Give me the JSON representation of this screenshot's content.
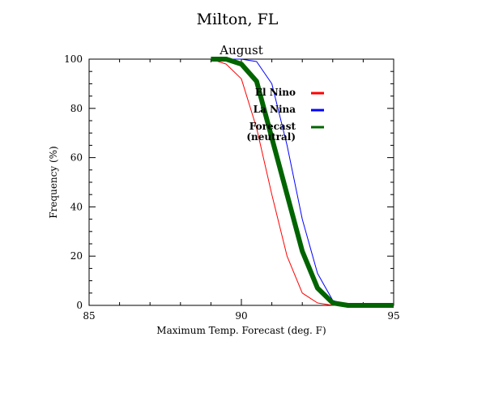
{
  "chart_data": {
    "type": "line",
    "title": "Milton, FL",
    "subtitle": "August",
    "xlabel": "Maximum Temp. Forecast (deg. F)",
    "ylabel": "Frequency (%)",
    "xlim": [
      85,
      95
    ],
    "ylim": [
      0,
      100
    ],
    "xticks": [
      "85",
      "90",
      "95"
    ],
    "yticks": [
      "0",
      "20",
      "40",
      "60",
      "80",
      "100"
    ],
    "grid": false,
    "legend_position": "upper-right inside plot",
    "series": [
      {
        "name": "El Nino",
        "color": "#ff0000",
        "x": [
          89.0,
          89.5,
          90.0,
          90.5,
          91.0,
          91.5,
          92.0,
          92.5,
          93.0,
          93.5,
          94.0,
          94.5,
          95.0
        ],
        "y": [
          100,
          98,
          92,
          72,
          45,
          20,
          5,
          1,
          0,
          0,
          0,
          0,
          0
        ]
      },
      {
        "name": "La Nina",
        "color": "#0000ff",
        "x": [
          89.5,
          90.0,
          90.5,
          91.0,
          91.5,
          92.0,
          92.5,
          93.0,
          93.5,
          94.0,
          94.5,
          95.0
        ],
        "y": [
          100,
          100,
          99,
          90,
          65,
          35,
          13,
          2,
          0,
          0,
          0,
          0
        ]
      },
      {
        "name": "Forecast (neutral)",
        "label_lines": [
          "Forecast",
          "(neutral)"
        ],
        "color": "#006400",
        "x": [
          89.0,
          89.5,
          90.0,
          90.5,
          91.0,
          91.5,
          92.0,
          92.5,
          93.0,
          93.5,
          94.0,
          94.5,
          95.0
        ],
        "y": [
          100,
          100,
          98,
          91,
          68,
          45,
          22,
          7,
          1,
          0,
          0,
          0,
          0
        ]
      }
    ]
  }
}
